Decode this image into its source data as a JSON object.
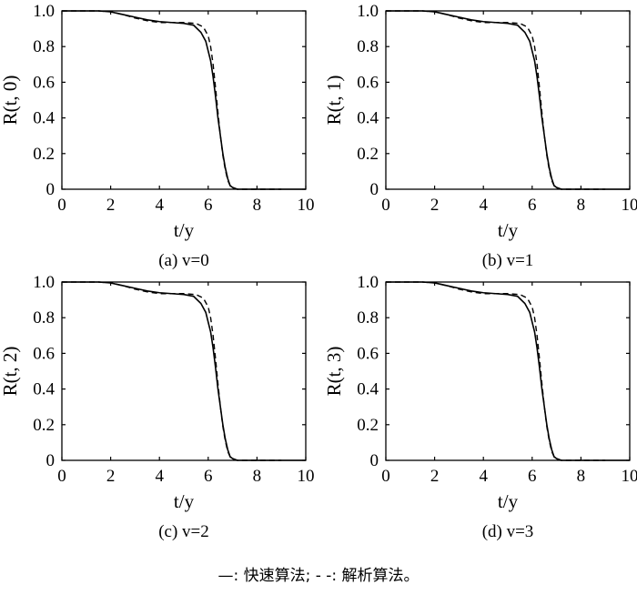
{
  "legend": {
    "text": "—: 快速算法;  - -: 解析算法。"
  },
  "chart_data": [
    {
      "type": "line",
      "caption": "(a) v=0",
      "xlabel": "t/y",
      "ylabel": "R(t, 0)",
      "xlim": [
        0,
        10
      ],
      "ylim": [
        0,
        1.0
      ],
      "xticks": [
        "0",
        "2",
        "4",
        "6",
        "8",
        "10"
      ],
      "yticks": [
        "0",
        "0.2",
        "0.4",
        "0.6",
        "0.8",
        "1.0"
      ],
      "series": [
        {
          "style": "solid",
          "x": [
            0,
            1,
            1.5,
            2,
            2.5,
            3,
            3.5,
            4,
            4.5,
            5,
            5.4,
            5.7,
            5.9,
            6.1,
            6.2,
            6.3,
            6.4,
            6.5,
            6.6,
            6.7,
            6.8,
            6.9,
            7.0,
            7.2,
            7.5,
            8,
            9,
            10
          ],
          "y": [
            1.0,
            1.0,
            1.0,
            0.995,
            0.98,
            0.965,
            0.95,
            0.94,
            0.935,
            0.93,
            0.92,
            0.88,
            0.83,
            0.72,
            0.63,
            0.52,
            0.4,
            0.3,
            0.2,
            0.12,
            0.06,
            0.02,
            0.01,
            0.0,
            0.0,
            0.0,
            0.0,
            0.0
          ]
        },
        {
          "style": "dashed",
          "x": [
            0,
            1,
            1.5,
            2,
            2.5,
            3,
            3.5,
            4,
            4.5,
            5,
            5.5,
            5.8,
            6.0,
            6.1,
            6.2,
            6.3,
            6.4,
            6.5,
            6.6,
            6.7,
            6.8,
            6.9,
            7.0,
            7.2,
            7.5,
            8,
            9
          ],
          "y": [
            1.0,
            1.0,
            1.0,
            0.995,
            0.98,
            0.96,
            0.945,
            0.935,
            0.935,
            0.935,
            0.93,
            0.91,
            0.86,
            0.8,
            0.7,
            0.57,
            0.43,
            0.3,
            0.19,
            0.11,
            0.05,
            0.02,
            0.005,
            0.0,
            0.0,
            0.0,
            0.0
          ]
        }
      ]
    },
    {
      "type": "line",
      "caption": "(b) v=1",
      "xlabel": "t/y",
      "ylabel": "R(t, 1)",
      "xlim": [
        0,
        10
      ],
      "ylim": [
        0,
        1.0
      ],
      "xticks": [
        "0",
        "2",
        "4",
        "6",
        "8",
        "10"
      ],
      "yticks": [
        "0",
        "0.2",
        "0.4",
        "0.6",
        "0.8",
        "1.0"
      ],
      "series": [
        {
          "style": "solid",
          "x": [
            0,
            1,
            1.5,
            2,
            2.5,
            3,
            3.5,
            4,
            4.5,
            5,
            5.4,
            5.7,
            5.9,
            6.1,
            6.2,
            6.3,
            6.4,
            6.5,
            6.6,
            6.7,
            6.8,
            6.9,
            7.0,
            7.2,
            7.5,
            8,
            9,
            10
          ],
          "y": [
            1.0,
            1.0,
            1.0,
            0.995,
            0.98,
            0.965,
            0.95,
            0.94,
            0.935,
            0.93,
            0.92,
            0.88,
            0.83,
            0.72,
            0.63,
            0.52,
            0.4,
            0.3,
            0.2,
            0.12,
            0.06,
            0.02,
            0.01,
            0.0,
            0.0,
            0.0,
            0.0,
            0.0
          ]
        },
        {
          "style": "dashed",
          "x": [
            0,
            1,
            1.5,
            2,
            2.5,
            3,
            3.5,
            4,
            4.5,
            5,
            5.5,
            5.8,
            6.0,
            6.1,
            6.2,
            6.3,
            6.4,
            6.5,
            6.6,
            6.7,
            6.8,
            6.9,
            7.0,
            7.2,
            7.5,
            8,
            9
          ],
          "y": [
            1.0,
            1.0,
            1.0,
            0.995,
            0.98,
            0.96,
            0.945,
            0.935,
            0.935,
            0.935,
            0.93,
            0.91,
            0.86,
            0.8,
            0.7,
            0.57,
            0.43,
            0.3,
            0.19,
            0.11,
            0.05,
            0.02,
            0.005,
            0.0,
            0.0,
            0.0,
            0.0
          ]
        }
      ]
    },
    {
      "type": "line",
      "caption": "(c) v=2",
      "xlabel": "t/y",
      "ylabel": "R(t, 2)",
      "xlim": [
        0,
        10
      ],
      "ylim": [
        0,
        1.0
      ],
      "xticks": [
        "0",
        "2",
        "4",
        "6",
        "8",
        "10"
      ],
      "yticks": [
        "0",
        "0.2",
        "0.4",
        "0.6",
        "0.8",
        "1.0"
      ],
      "series": [
        {
          "style": "solid",
          "x": [
            0,
            1,
            1.5,
            2,
            2.5,
            3,
            3.5,
            4,
            4.5,
            5,
            5.4,
            5.7,
            5.9,
            6.1,
            6.2,
            6.3,
            6.4,
            6.5,
            6.6,
            6.7,
            6.8,
            6.9,
            7.0,
            7.2,
            7.5,
            8,
            9,
            10
          ],
          "y": [
            1.0,
            1.0,
            1.0,
            0.995,
            0.98,
            0.965,
            0.95,
            0.94,
            0.935,
            0.93,
            0.92,
            0.88,
            0.83,
            0.72,
            0.63,
            0.52,
            0.4,
            0.3,
            0.2,
            0.12,
            0.06,
            0.02,
            0.01,
            0.0,
            0.0,
            0.0,
            0.0,
            0.0
          ]
        },
        {
          "style": "dashed",
          "x": [
            0,
            1,
            1.5,
            2,
            2.5,
            3,
            3.5,
            4,
            4.5,
            5,
            5.5,
            5.8,
            6.0,
            6.1,
            6.2,
            6.3,
            6.4,
            6.5,
            6.6,
            6.7,
            6.8,
            6.9,
            7.0,
            7.2,
            7.5,
            8,
            9
          ],
          "y": [
            1.0,
            1.0,
            1.0,
            0.995,
            0.98,
            0.96,
            0.945,
            0.935,
            0.935,
            0.935,
            0.93,
            0.91,
            0.86,
            0.8,
            0.7,
            0.57,
            0.43,
            0.3,
            0.19,
            0.11,
            0.05,
            0.02,
            0.005,
            0.0,
            0.0,
            0.0,
            0.0
          ]
        }
      ]
    },
    {
      "type": "line",
      "caption": "(d) v=3",
      "xlabel": "t/y",
      "ylabel": "R(t, 3)",
      "xlim": [
        0,
        10
      ],
      "ylim": [
        0,
        1.0
      ],
      "xticks": [
        "0",
        "2",
        "4",
        "6",
        "8",
        "10"
      ],
      "yticks": [
        "0",
        "0.2",
        "0.4",
        "0.6",
        "0.8",
        "1.0"
      ],
      "series": [
        {
          "style": "solid",
          "x": [
            0,
            1,
            1.5,
            2,
            2.5,
            3,
            3.5,
            4,
            4.5,
            5,
            5.4,
            5.7,
            5.9,
            6.1,
            6.2,
            6.3,
            6.4,
            6.5,
            6.6,
            6.7,
            6.8,
            6.9,
            7.0,
            7.2,
            7.5,
            8,
            9,
            10
          ],
          "y": [
            1.0,
            1.0,
            1.0,
            0.995,
            0.98,
            0.965,
            0.95,
            0.94,
            0.935,
            0.93,
            0.92,
            0.88,
            0.83,
            0.72,
            0.63,
            0.52,
            0.4,
            0.3,
            0.2,
            0.12,
            0.06,
            0.02,
            0.01,
            0.0,
            0.0,
            0.0,
            0.0,
            0.0
          ]
        },
        {
          "style": "dashed",
          "x": [
            0,
            1,
            1.5,
            2,
            2.5,
            3,
            3.5,
            4,
            4.5,
            5,
            5.5,
            5.8,
            6.0,
            6.1,
            6.2,
            6.3,
            6.4,
            6.5,
            6.6,
            6.7,
            6.8,
            6.9,
            7.0,
            7.2,
            7.5,
            8,
            9
          ],
          "y": [
            1.0,
            1.0,
            1.0,
            0.995,
            0.98,
            0.96,
            0.945,
            0.935,
            0.935,
            0.935,
            0.93,
            0.91,
            0.86,
            0.8,
            0.7,
            0.57,
            0.43,
            0.3,
            0.19,
            0.11,
            0.05,
            0.02,
            0.005,
            0.0,
            0.0,
            0.0,
            0.0
          ]
        }
      ]
    }
  ]
}
